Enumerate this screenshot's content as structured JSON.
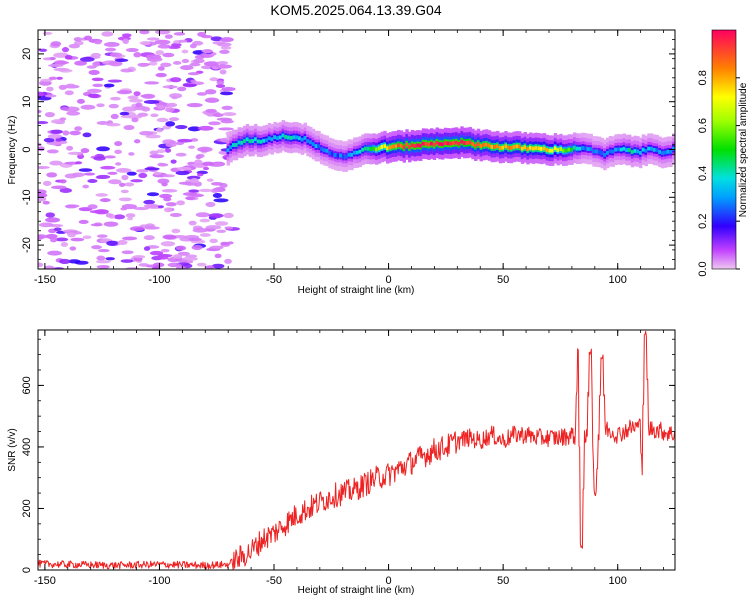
{
  "title": "KOM5.2025.064.13.39.G04",
  "chart_data": [
    {
      "type": "heatmap",
      "title": "",
      "xlabel": "Height of straight line (km)",
      "ylabel": "Frequency (Hz)",
      "xlim": [
        -153,
        125
      ],
      "ylim": [
        -25,
        25
      ],
      "xticks": [
        -150,
        -100,
        -50,
        0,
        50,
        100
      ],
      "yticks": [
        -20,
        -10,
        0,
        10,
        20
      ],
      "grid": false,
      "noise_region_x": [
        -153,
        -68
      ],
      "ridge": {
        "x": [
          -70,
          -65,
          -60,
          -55,
          -50,
          -45,
          -40,
          -35,
          -30,
          -25,
          -20,
          -15,
          -10,
          -5,
          0,
          10,
          20,
          30,
          40,
          50,
          60,
          70,
          80,
          85,
          90,
          95,
          100,
          105,
          110,
          115,
          120,
          125
        ],
        "frequency": [
          0,
          1.5,
          2,
          1.8,
          2.5,
          2.8,
          2.5,
          2,
          0.5,
          -0.8,
          -1.5,
          -0.8,
          0,
          0.3,
          0.5,
          0.8,
          1.2,
          1.5,
          1,
          0.5,
          0.3,
          0,
          0,
          0.5,
          -0.5,
          -1,
          0,
          -0.2,
          -0.5,
          0.2,
          -0.5,
          0
        ],
        "amplitude": [
          0.3,
          0.4,
          0.4,
          0.35,
          0.3,
          0.4,
          0.35,
          0.3,
          0.3,
          0.25,
          0.25,
          0.3,
          0.4,
          0.6,
          0.8,
          0.95,
          0.95,
          0.95,
          0.85,
          0.8,
          0.8,
          0.75,
          0.5,
          0.3,
          0.25,
          0.3,
          0.3,
          0.4,
          0.35,
          0.3,
          0.3,
          0.3
        ]
      },
      "colorbar": {
        "label": "Normalized spectral amplitude",
        "range": [
          0,
          1
        ],
        "ticks": [
          "0.0",
          "0.2",
          "0.4",
          "0.6",
          "0.8"
        ],
        "tick_values": [
          0,
          0.2,
          0.4,
          0.6,
          0.8
        ],
        "colormap": "rainbow"
      }
    },
    {
      "type": "line",
      "title": "",
      "xlabel": "Height of straight line (km)",
      "ylabel": "SNR (v/v)",
      "xlim": [
        -153,
        125
      ],
      "ylim": [
        0,
        780
      ],
      "xticks": [
        -150,
        -100,
        -50,
        0,
        50,
        100
      ],
      "yticks": [
        0,
        200,
        400,
        600
      ],
      "grid": false,
      "series": [
        {
          "color": "#ee2222",
          "x": [
            -153,
            -140,
            -120,
            -100,
            -80,
            -70,
            -65,
            -60,
            -55,
            -50,
            -45,
            -40,
            -35,
            -30,
            -25,
            -20,
            -15,
            -10,
            -5,
            0,
            5,
            10,
            15,
            20,
            25,
            30,
            35,
            40,
            45,
            50,
            55,
            60,
            65,
            70,
            75,
            80,
            83,
            85,
            88,
            90,
            95,
            100,
            105,
            110,
            112,
            115,
            120,
            125
          ],
          "y": [
            20,
            18,
            15,
            18,
            15,
            18,
            40,
            60,
            100,
            120,
            150,
            180,
            200,
            220,
            240,
            250,
            260,
            280,
            300,
            310,
            330,
            350,
            370,
            390,
            400,
            420,
            430,
            420,
            440,
            420,
            440,
            440,
            430,
            430,
            430,
            440,
            430,
            420,
            440,
            430,
            460,
            440,
            460,
            470,
            450,
            460,
            450,
            440
          ],
          "spikes": [
            {
              "x": 83,
              "y": 720
            },
            {
              "x": 84,
              "y": 80
            },
            {
              "x": 88,
              "y": 710
            },
            {
              "x": 90,
              "y": 250
            },
            {
              "x": 93,
              "y": 690
            },
            {
              "x": 111,
              "y": 310
            },
            {
              "x": 112,
              "y": 770
            }
          ]
        }
      ]
    }
  ]
}
